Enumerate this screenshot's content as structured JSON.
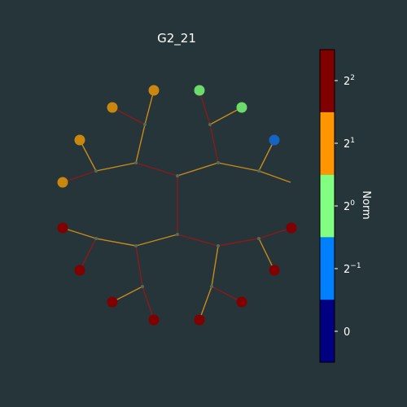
{
  "title": "G2_21",
  "colorbar": {
    "label": "Norm",
    "bands": [
      "#000080",
      "#0080ff",
      "#80ff80",
      "#ff9500",
      "#800000"
    ],
    "ticks": [
      {
        "label": "0",
        "base": "",
        "exp": ""
      },
      {
        "label": "",
        "base": "2",
        "exp": "−1"
      },
      {
        "label": "",
        "base": "2",
        "exp": "0"
      },
      {
        "label": "",
        "base": "2",
        "exp": "1"
      },
      {
        "label": "",
        "base": "2",
        "exp": "2"
      }
    ]
  },
  "graph": {
    "colors": {
      "red": "#800000",
      "orange": "#c9870f",
      "green": "#6bdc6b",
      "blue": "#1565c0"
    },
    "edge_colors": {
      "red": "#8b1a1a",
      "orange": "#c98a1a"
    },
    "hub_color": "#556b55",
    "node_count": 16,
    "leaf_colors": [
      "orange",
      "orange",
      "orange",
      "orange",
      "green",
      "green",
      "blue",
      "red",
      "red",
      "red",
      "red",
      "red",
      "red",
      "red",
      "red",
      "red"
    ]
  }
}
